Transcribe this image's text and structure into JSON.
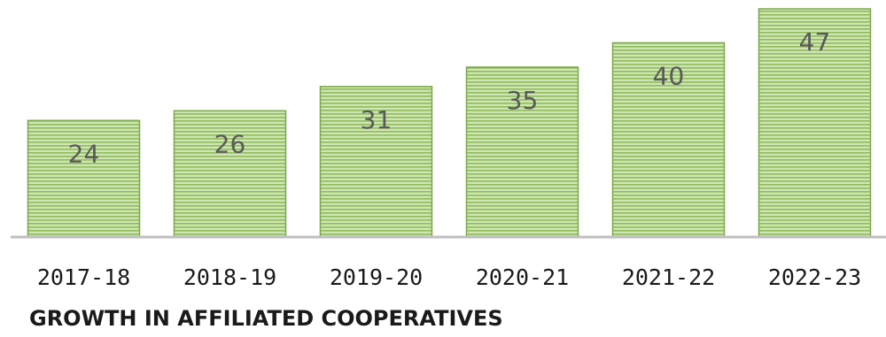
{
  "chart_data": {
    "type": "bar",
    "title": "GROWTH IN AFFILIATED COOPERATIVES",
    "categories": [
      "2017-18",
      "2018-19",
      "2019-20",
      "2020-21",
      "2021-22",
      "2022-23"
    ],
    "values": [
      24,
      26,
      31,
      35,
      40,
      47
    ],
    "ylim": [
      0,
      47
    ],
    "grid": false,
    "legend": "none",
    "data_labels": "inside-top",
    "colors": {
      "bar_fill": "#c5e0a8",
      "bar_stripe": "#8fbc5c",
      "bar_border": "#7aa84a",
      "axis": "#bfbfbf",
      "data_label": "#595959"
    }
  }
}
